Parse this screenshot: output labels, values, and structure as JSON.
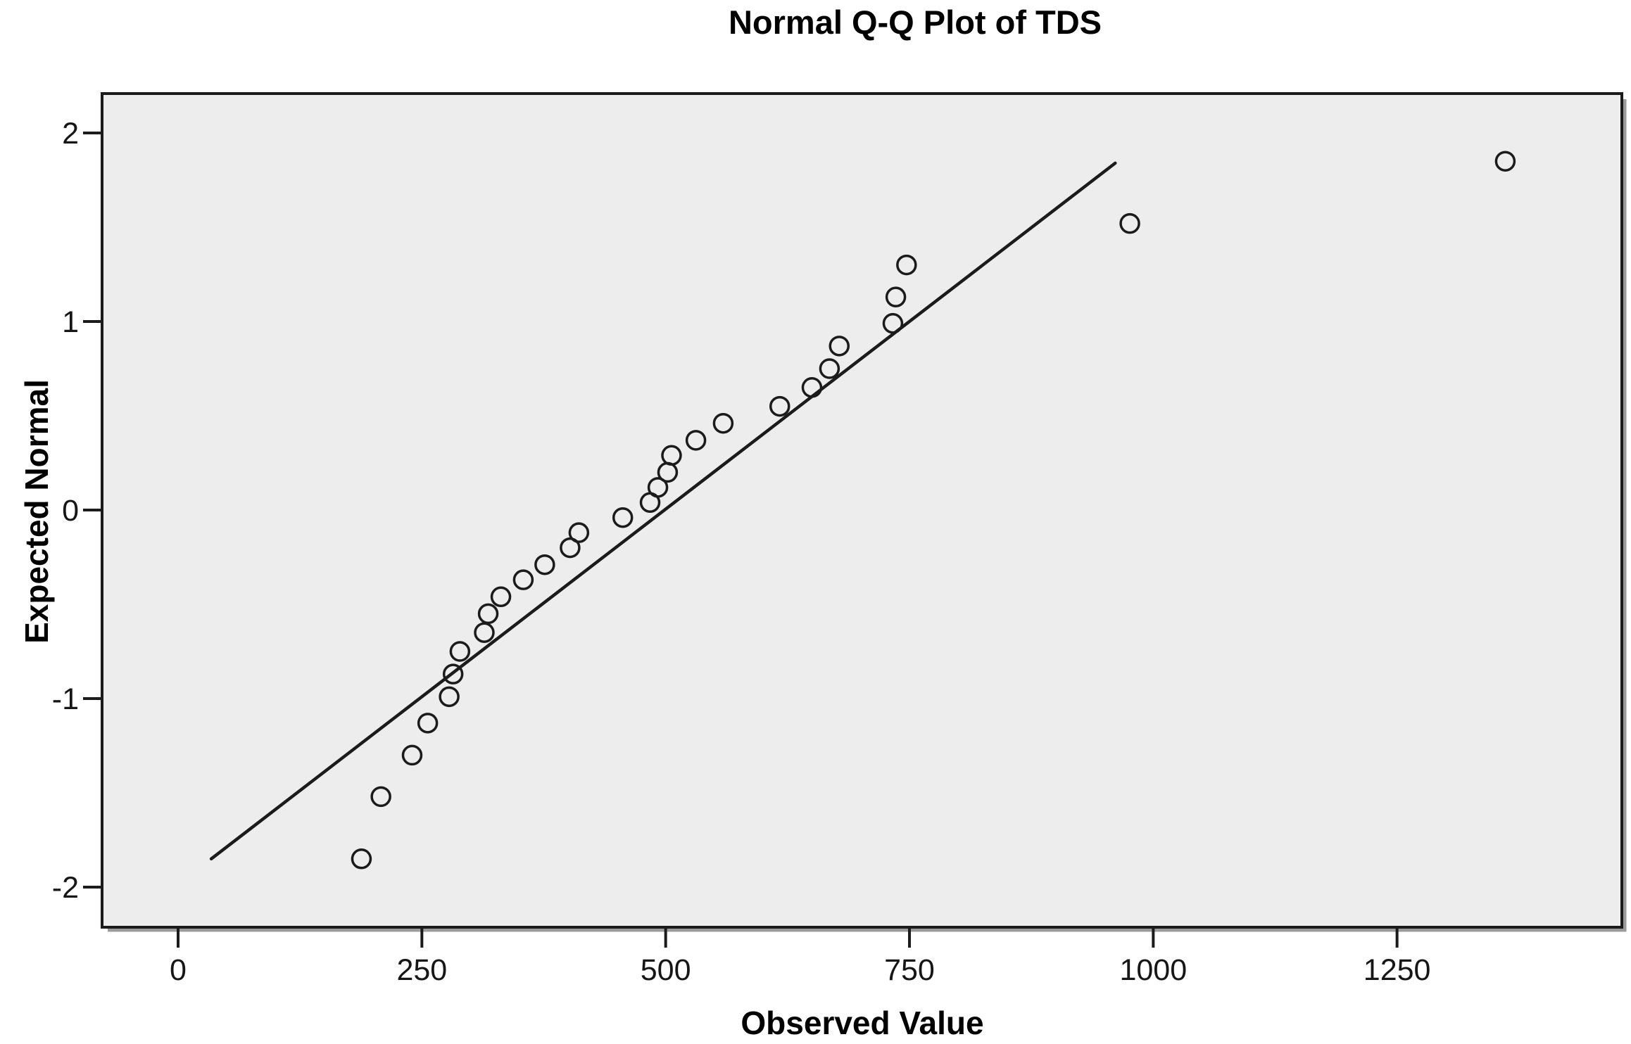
{
  "chart_data": {
    "type": "scatter",
    "subtype": "normal-qq-plot",
    "title": "Normal Q-Q Plot of TDS",
    "xlabel": "Observed Value",
    "ylabel": "Expected Normal",
    "xlim": [
      -78,
      1480
    ],
    "ylim": [
      -2.21,
      2.21
    ],
    "x_ticks": [
      {
        "value": 0,
        "label": "0"
      },
      {
        "value": 250,
        "label": "250"
      },
      {
        "value": 500,
        "label": "500"
      },
      {
        "value": 750,
        "label": "750"
      },
      {
        "value": 1000,
        "label": "1000"
      },
      {
        "value": 1250,
        "label": "1250"
      }
    ],
    "y_ticks": [
      {
        "value": 2,
        "label": "2"
      },
      {
        "value": 1,
        "label": "1"
      },
      {
        "value": 0,
        "label": "0"
      },
      {
        "value": -1,
        "label": "-1"
      },
      {
        "value": -2,
        "label": "-2"
      }
    ],
    "grid": false,
    "legend": "none",
    "marker": "open-circle",
    "points": [
      {
        "observed": 188,
        "expected": -1.85
      },
      {
        "observed": 208,
        "expected": -1.52
      },
      {
        "observed": 240,
        "expected": -1.3
      },
      {
        "observed": 256,
        "expected": -1.13
      },
      {
        "observed": 278,
        "expected": -0.99
      },
      {
        "observed": 282,
        "expected": -0.87
      },
      {
        "observed": 289,
        "expected": -0.75
      },
      {
        "observed": 314,
        "expected": -0.65
      },
      {
        "observed": 318,
        "expected": -0.55
      },
      {
        "observed": 331,
        "expected": -0.46
      },
      {
        "observed": 354,
        "expected": -0.37
      },
      {
        "observed": 376,
        "expected": -0.29
      },
      {
        "observed": 402,
        "expected": -0.2
      },
      {
        "observed": 411,
        "expected": -0.12
      },
      {
        "observed": 456,
        "expected": -0.04
      },
      {
        "observed": 484,
        "expected": 0.04
      },
      {
        "observed": 492,
        "expected": 0.12
      },
      {
        "observed": 502,
        "expected": 0.2
      },
      {
        "observed": 506,
        "expected": 0.29
      },
      {
        "observed": 531,
        "expected": 0.37
      },
      {
        "observed": 559,
        "expected": 0.46
      },
      {
        "observed": 617,
        "expected": 0.55
      },
      {
        "observed": 650,
        "expected": 0.65
      },
      {
        "observed": 668,
        "expected": 0.75
      },
      {
        "observed": 678,
        "expected": 0.87
      },
      {
        "observed": 733,
        "expected": 0.99
      },
      {
        "observed": 736,
        "expected": 1.13
      },
      {
        "observed": 747,
        "expected": 1.3
      },
      {
        "observed": 976,
        "expected": 1.52
      },
      {
        "observed": 1361,
        "expected": 1.85
      }
    ],
    "reference_line": {
      "x1": 34,
      "y1": -1.85,
      "x2": 961,
      "y2": 1.84
    },
    "colors": {
      "plot_background": "#ededed",
      "outer_background": "#ffffff",
      "border": "#1b1b1b",
      "border_shadow": "#9c9c9c",
      "marker": "#1b1b1b",
      "line": "#1b1b1b",
      "text": "#000000"
    }
  }
}
